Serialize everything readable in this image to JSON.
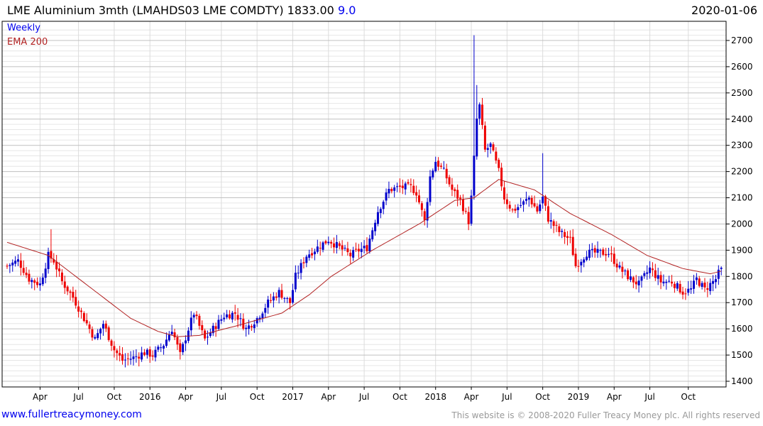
{
  "header": {
    "title": "LME Aluminium 3mth (LMAHDS03 LME COMDTY) 1833.00",
    "change": "9.0",
    "date": "2020-01-06"
  },
  "legend": {
    "weekly": "Weekly",
    "ema": "EMA 200"
  },
  "footer": {
    "site": "www.fullertreacymoney.com",
    "copyright": "This website is © 2008-2020 Fuller Treacy Money plc. All rights reserved"
  },
  "colors": {
    "up": "#0000cc",
    "down": "#ee0000",
    "ema": "#b22222",
    "grid_major": "#c0c0c0",
    "grid_minor": "#e6e6e6"
  },
  "chart_data": {
    "type": "candlestick",
    "title": "LME Aluminium 3mth (LMAHDS03 LME COMDTY) 1833.00 9.0",
    "frequency": "weekly",
    "ylim": [
      1400,
      2750
    ],
    "y_ticks": [
      1400,
      1500,
      1600,
      1700,
      1800,
      1900,
      2000,
      2100,
      2200,
      2300,
      2400,
      2500,
      2600,
      2700
    ],
    "x_ticks": [
      {
        "label": "Apr",
        "week": 12
      },
      {
        "label": "Jul",
        "week": 26
      },
      {
        "label": "Oct",
        "week": 39
      },
      {
        "label": "2016",
        "week": 52
      },
      {
        "label": "Apr",
        "week": 65
      },
      {
        "label": "Jul",
        "week": 78
      },
      {
        "label": "Oct",
        "week": 91
      },
      {
        "label": "2017",
        "week": 104
      },
      {
        "label": "Apr",
        "week": 117
      },
      {
        "label": "Jul",
        "week": 130
      },
      {
        "label": "Oct",
        "week": 143
      },
      {
        "label": "2018",
        "week": 156
      },
      {
        "label": "Apr",
        "week": 169
      },
      {
        "label": "Jul",
        "week": 182
      },
      {
        "label": "Oct",
        "week": 195
      },
      {
        "label": "2019",
        "week": 208
      },
      {
        "label": "Apr",
        "week": 221
      },
      {
        "label": "Jul",
        "week": 234
      },
      {
        "label": "Oct",
        "week": 248
      }
    ],
    "total_weeks": 261,
    "close_anchors": [
      [
        0,
        1840
      ],
      [
        4,
        1860
      ],
      [
        8,
        1790
      ],
      [
        12,
        1770
      ],
      [
        15,
        1880
      ],
      [
        17,
        1860
      ],
      [
        20,
        1780
      ],
      [
        24,
        1720
      ],
      [
        28,
        1640
      ],
      [
        32,
        1560
      ],
      [
        35,
        1620
      ],
      [
        39,
        1520
      ],
      [
        42,
        1480
      ],
      [
        46,
        1490
      ],
      [
        50,
        1510
      ],
      [
        53,
        1500
      ],
      [
        57,
        1540
      ],
      [
        60,
        1600
      ],
      [
        63,
        1500
      ],
      [
        66,
        1600
      ],
      [
        68,
        1660
      ],
      [
        72,
        1560
      ],
      [
        75,
        1600
      ],
      [
        79,
        1650
      ],
      [
        83,
        1660
      ],
      [
        87,
        1600
      ],
      [
        91,
        1640
      ],
      [
        95,
        1700
      ],
      [
        99,
        1740
      ],
      [
        103,
        1700
      ],
      [
        105,
        1800
      ],
      [
        109,
        1880
      ],
      [
        113,
        1910
      ],
      [
        117,
        1940
      ],
      [
        121,
        1910
      ],
      [
        125,
        1880
      ],
      [
        128,
        1900
      ],
      [
        131,
        1910
      ],
      [
        135,
        2050
      ],
      [
        139,
        2130
      ],
      [
        143,
        2140
      ],
      [
        147,
        2140
      ],
      [
        149,
        2120
      ],
      [
        152,
        2010
      ],
      [
        154,
        2180
      ],
      [
        156,
        2240
      ],
      [
        159,
        2200
      ],
      [
        162,
        2130
      ],
      [
        165,
        2090
      ],
      [
        168,
        2010
      ],
      [
        169,
        2100
      ],
      [
        171,
        2400
      ],
      [
        172,
        2450
      ],
      [
        174,
        2280
      ],
      [
        176,
        2300
      ],
      [
        179,
        2200
      ],
      [
        181,
        2100
      ],
      [
        184,
        2050
      ],
      [
        188,
        2080
      ],
      [
        190,
        2100
      ],
      [
        193,
        2050
      ],
      [
        195,
        2100
      ],
      [
        197,
        2020
      ],
      [
        201,
        1970
      ],
      [
        205,
        1940
      ],
      [
        207,
        1840
      ],
      [
        211,
        1890
      ],
      [
        215,
        1890
      ],
      [
        219,
        1890
      ],
      [
        223,
        1830
      ],
      [
        227,
        1790
      ],
      [
        230,
        1770
      ],
      [
        234,
        1830
      ],
      [
        238,
        1780
      ],
      [
        242,
        1780
      ],
      [
        246,
        1740
      ],
      [
        249,
        1750
      ],
      [
        251,
        1790
      ],
      [
        254,
        1750
      ],
      [
        258,
        1790
      ],
      [
        260,
        1833
      ]
    ],
    "spike_highs": [
      [
        16,
        1980
      ],
      [
        170,
        2720
      ],
      [
        171,
        2530
      ],
      [
        195,
        2270
      ]
    ],
    "ema_anchors": [
      [
        0,
        1930
      ],
      [
        15,
        1880
      ],
      [
        30,
        1760
      ],
      [
        45,
        1640
      ],
      [
        55,
        1590
      ],
      [
        62,
        1570
      ],
      [
        70,
        1575
      ],
      [
        83,
        1610
      ],
      [
        100,
        1660
      ],
      [
        110,
        1730
      ],
      [
        118,
        1800
      ],
      [
        133,
        1900
      ],
      [
        150,
        2000
      ],
      [
        163,
        2090
      ],
      [
        170,
        2100
      ],
      [
        179,
        2170
      ],
      [
        192,
        2130
      ],
      [
        205,
        2040
      ],
      [
        220,
        1960
      ],
      [
        233,
        1880
      ],
      [
        246,
        1830
      ],
      [
        256,
        1810
      ],
      [
        260,
        1820
      ]
    ]
  }
}
